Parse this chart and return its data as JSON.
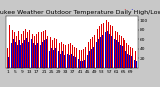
{
  "title": "Milwaukee Weather Outdoor Temperature Daily High/Low",
  "background_color": "#c8c8c8",
  "plot_bg_color": "#ffffff",
  "high_color": "#dd0000",
  "low_color": "#0000cc",
  "highs": [
    42,
    90,
    72,
    80,
    75,
    68,
    78,
    68,
    72,
    78,
    82,
    75,
    80,
    80,
    72,
    68,
    72,
    75,
    68,
    75,
    78,
    80,
    68,
    55,
    65,
    58,
    62,
    60,
    55,
    52,
    55,
    50,
    48,
    52,
    50,
    52,
    48,
    45,
    42,
    42,
    38,
    38,
    40,
    45,
    50,
    55,
    60,
    65,
    70,
    75,
    82,
    88,
    92,
    95,
    98,
    100,
    96,
    90,
    88,
    82,
    78,
    75,
    70,
    68,
    62,
    58,
    52,
    48,
    45,
    42,
    38,
    35
  ],
  "lows": [
    22,
    68,
    52,
    60,
    55,
    48,
    58,
    48,
    52,
    58,
    62,
    55,
    62,
    60,
    52,
    48,
    52,
    55,
    48,
    55,
    58,
    60,
    48,
    35,
    42,
    38,
    42,
    38,
    35,
    30,
    35,
    28,
    26,
    30,
    28,
    30,
    26,
    22,
    20,
    18,
    15,
    14,
    16,
    22,
    28,
    35,
    40,
    45,
    50,
    55,
    60,
    65,
    70,
    72,
    75,
    78,
    72,
    68,
    65,
    60,
    58,
    55,
    48,
    46,
    40,
    36,
    30,
    28,
    24,
    20,
    16,
    14
  ],
  "n_bars": 72,
  "ylim": [
    0,
    110
  ],
  "yticks": [
    20,
    40,
    60,
    80,
    100
  ],
  "title_fontsize": 4.5,
  "tick_fontsize": 3.2,
  "bar_width": 0.45,
  "legend_dots_high": ".",
  "legend_dots_low": "."
}
